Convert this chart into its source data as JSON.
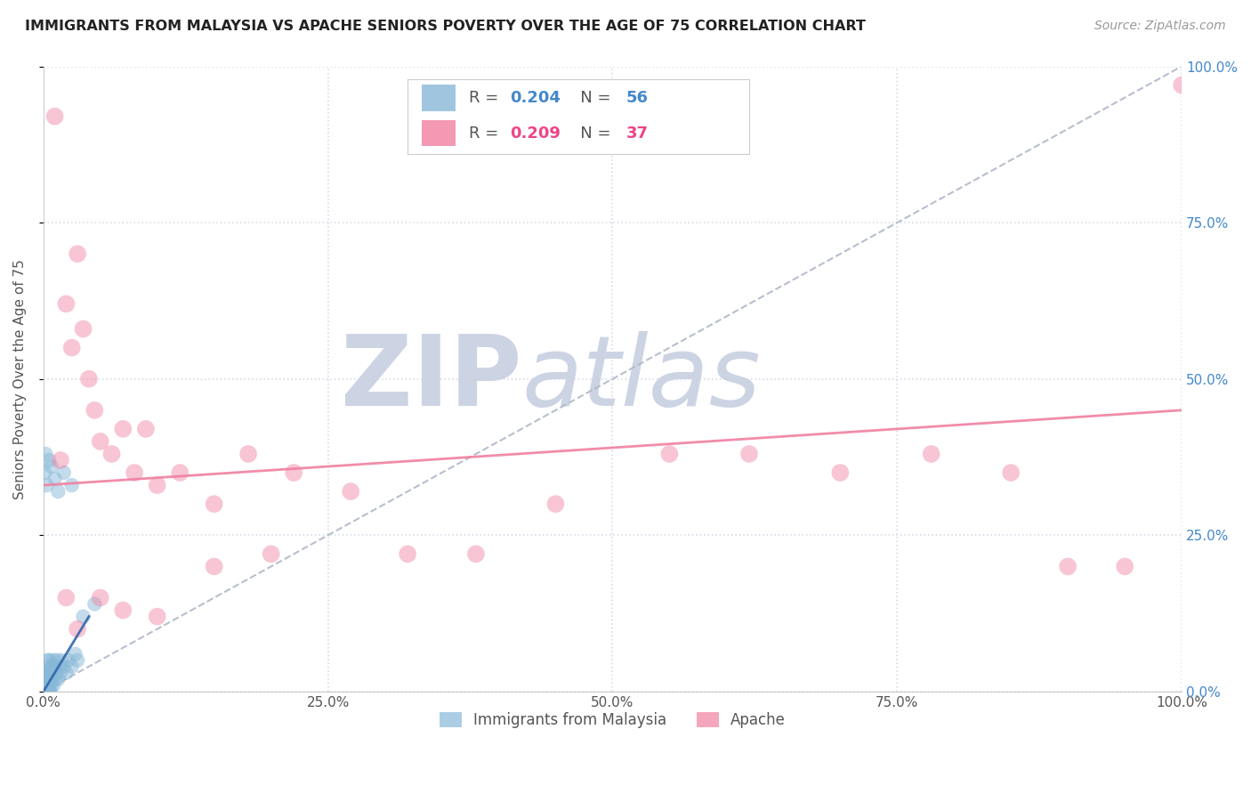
{
  "title": "IMMIGRANTS FROM MALAYSIA VS APACHE SENIORS POVERTY OVER THE AGE OF 75 CORRELATION CHART",
  "source": "Source: ZipAtlas.com",
  "ylabel": "Seniors Poverty Over the Age of 75",
  "xlim": [
    0.0,
    1.0
  ],
  "ylim": [
    0.0,
    1.0
  ],
  "legend_entries": [
    {
      "label": "Immigrants from Malaysia",
      "color": "#a8c8e8",
      "R": "0.204",
      "N": "56",
      "R_color": "#4488cc",
      "N_color": "#4488cc"
    },
    {
      "label": "Apache",
      "color": "#f4a0b4",
      "R": "0.209",
      "N": "37",
      "R_color": "#ee4488",
      "N_color": "#ee4488"
    }
  ],
  "blue_color": "#88b8d8",
  "pink_color": "#f080a0",
  "gray_dash_color": "#b0b8c8",
  "watermark_zip": "ZIP",
  "watermark_atlas": "atlas",
  "watermark_color": "#ccd4e4",
  "malaysia_x": [
    0.001,
    0.001,
    0.001,
    0.001,
    0.002,
    0.002,
    0.002,
    0.002,
    0.002,
    0.003,
    0.003,
    0.003,
    0.003,
    0.004,
    0.004,
    0.004,
    0.004,
    0.004,
    0.005,
    0.005,
    0.005,
    0.005,
    0.006,
    0.006,
    0.006,
    0.007,
    0.007,
    0.008,
    0.008,
    0.009,
    0.009,
    0.01,
    0.01,
    0.011,
    0.012,
    0.013,
    0.014,
    0.015,
    0.016,
    0.018,
    0.02,
    0.022,
    0.025,
    0.028,
    0.03,
    0.001,
    0.002,
    0.003,
    0.005,
    0.007,
    0.01,
    0.013,
    0.018,
    0.025,
    0.035,
    0.045
  ],
  "malaysia_y": [
    0.0,
    0.0,
    0.0,
    0.02,
    0.0,
    0.0,
    0.01,
    0.02,
    0.03,
    0.0,
    0.01,
    0.02,
    0.03,
    0.0,
    0.01,
    0.02,
    0.03,
    0.05,
    0.0,
    0.01,
    0.03,
    0.05,
    0.0,
    0.02,
    0.04,
    0.01,
    0.03,
    0.02,
    0.04,
    0.01,
    0.05,
    0.02,
    0.04,
    0.03,
    0.05,
    0.02,
    0.04,
    0.03,
    0.05,
    0.04,
    0.03,
    0.05,
    0.04,
    0.06,
    0.05,
    0.35,
    0.38,
    0.33,
    0.37,
    0.36,
    0.34,
    0.32,
    0.35,
    0.33,
    0.12,
    0.14
  ],
  "apache_x": [
    0.01,
    0.015,
    0.02,
    0.025,
    0.03,
    0.035,
    0.04,
    0.045,
    0.05,
    0.06,
    0.07,
    0.08,
    0.09,
    0.1,
    0.12,
    0.15,
    0.18,
    0.22,
    0.27,
    0.32,
    0.38,
    0.45,
    0.55,
    0.62,
    0.7,
    0.78,
    0.85,
    0.9,
    0.95,
    1.0,
    0.02,
    0.03,
    0.05,
    0.07,
    0.1,
    0.15,
    0.2
  ],
  "apache_y": [
    0.92,
    0.37,
    0.62,
    0.55,
    0.7,
    0.58,
    0.5,
    0.45,
    0.4,
    0.38,
    0.42,
    0.35,
    0.42,
    0.33,
    0.35,
    0.3,
    0.38,
    0.35,
    0.32,
    0.22,
    0.22,
    0.3,
    0.38,
    0.38,
    0.35,
    0.38,
    0.35,
    0.2,
    0.2,
    0.97,
    0.15,
    0.1,
    0.15,
    0.13,
    0.12,
    0.2,
    0.22
  ],
  "blue_trend_x": [
    0.0,
    0.04
  ],
  "blue_trend_y": [
    0.0,
    0.12
  ],
  "pink_trend_x": [
    0.0,
    1.0
  ],
  "pink_trend_y": [
    0.33,
    0.45
  ],
  "gray_trend_x": [
    0.0,
    1.0
  ],
  "gray_trend_y": [
    0.0,
    1.0
  ],
  "grid_color": "#d8dce8",
  "background_color": "#ffffff",
  "ytick_right_color": "#4488cc"
}
